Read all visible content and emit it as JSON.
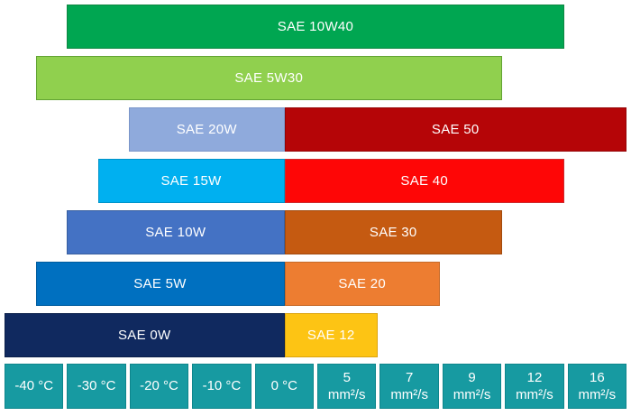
{
  "page": {
    "background": "#ffffff",
    "text_color": "#ffffff"
  },
  "chart_data": {
    "type": "bar",
    "variant": "horizontal-range-bars",
    "title": "",
    "xlabel": "",
    "ylabel": "",
    "legend": "none",
    "grid": false,
    "axis_range": [
      0,
      10
    ],
    "axis_style": {
      "fill": "#179aa1",
      "border": "#0e868c",
      "text_color": "#ffffff"
    },
    "axis_cells": [
      {
        "label": "-40 °C",
        "lines": [
          "-40 °C"
        ],
        "value": -40,
        "unit": "°C"
      },
      {
        "label": "-30 °C",
        "lines": [
          "-30 °C"
        ],
        "value": -30,
        "unit": "°C"
      },
      {
        "label": "-20 °C",
        "lines": [
          "-20 °C"
        ],
        "value": -20,
        "unit": "°C"
      },
      {
        "label": "-10 °C",
        "lines": [
          "-10 °C"
        ],
        "value": -10,
        "unit": "°C"
      },
      {
        "label": "0 °C",
        "lines": [
          "0 °C"
        ],
        "value": 0,
        "unit": "°C"
      },
      {
        "label": "5 mm²/s",
        "lines": [
          "5",
          "mm²/s"
        ],
        "value": 5,
        "unit": "mm²/s"
      },
      {
        "label": "7 mm²/s",
        "lines": [
          "7",
          "mm²/s"
        ],
        "value": 7,
        "unit": "mm²/s"
      },
      {
        "label": "9 mm²/s",
        "lines": [
          "9",
          "mm²/s"
        ],
        "value": 9,
        "unit": "mm²/s"
      },
      {
        "label": "12 mm²/s",
        "lines": [
          "12",
          "mm²/s"
        ],
        "value": 12,
        "unit": "mm²/s"
      },
      {
        "label": "16 mm²/s",
        "lines": [
          "16",
          "mm²/s"
        ],
        "value": 16,
        "unit": "mm²/s"
      }
    ],
    "rows": [
      {
        "segments": [
          {
            "label": "SAE 10W40",
            "start": 1.0,
            "end": 9.0,
            "fill": "#00a651",
            "border": "#0e8742"
          }
        ]
      },
      {
        "segments": [
          {
            "label": "SAE 5W30",
            "start": 0.5,
            "end": 8.0,
            "fill": "#90d04e",
            "border": "#62a333"
          }
        ]
      },
      {
        "segments": [
          {
            "label": "SAE 20W",
            "start": 2.0,
            "end": 4.5,
            "fill": "#8faadc",
            "border": "#7b96c9"
          },
          {
            "label": "SAE 50",
            "start": 4.5,
            "end": 10.0,
            "fill": "#b50507",
            "border": "#940406"
          }
        ]
      },
      {
        "segments": [
          {
            "label": "SAE 15W",
            "start": 1.5,
            "end": 4.5,
            "fill": "#00b0f0",
            "border": "#0093c8"
          },
          {
            "label": "SAE 40",
            "start": 4.5,
            "end": 9.0,
            "fill": "#fe0606",
            "border": "#cc2a2e"
          }
        ]
      },
      {
        "segments": [
          {
            "label": "SAE 10W",
            "start": 1.0,
            "end": 4.5,
            "fill": "#4472c4",
            "border": "#375e9f"
          },
          {
            "label": "SAE 30",
            "start": 4.5,
            "end": 8.0,
            "fill": "#c55a11",
            "border": "#a14a0e"
          }
        ]
      },
      {
        "segments": [
          {
            "label": "SAE 5W",
            "start": 0.5,
            "end": 4.5,
            "fill": "#0070c0",
            "border": "#005c9e"
          },
          {
            "label": "SAE 20",
            "start": 4.5,
            "end": 7.0,
            "fill": "#ed7d31",
            "border": "#c66a29"
          }
        ]
      },
      {
        "segments": [
          {
            "label": "SAE 0W",
            "start": 0.0,
            "end": 4.5,
            "fill": "#10295f",
            "border": "#0b1f4a"
          },
          {
            "label": "SAE 12",
            "start": 4.5,
            "end": 6.0,
            "fill": "#fdc414",
            "border": "#dca40f"
          }
        ]
      }
    ]
  }
}
